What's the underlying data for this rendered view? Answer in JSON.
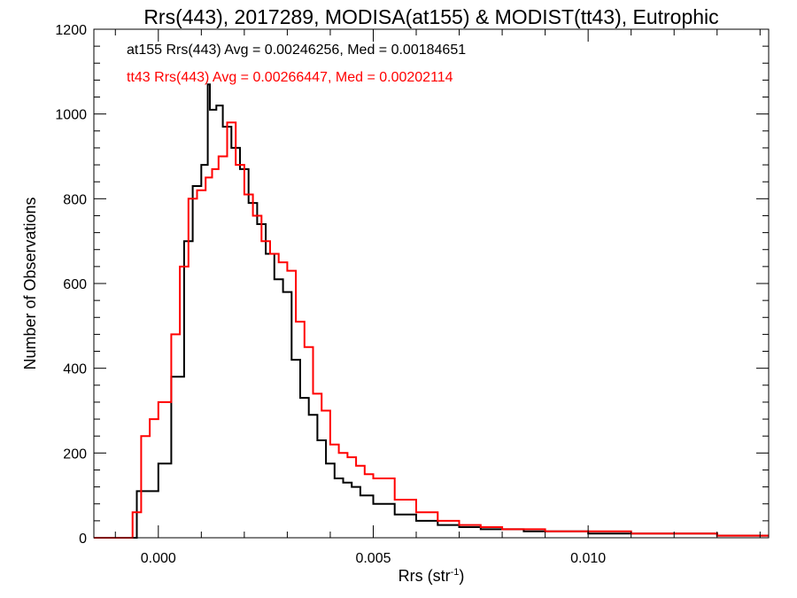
{
  "chart_data": {
    "type": "histogram",
    "title": "Rrs(443), 2017289, MODISA(at155) & MODIST(tt43), Eutrophic",
    "xlabel": "Rrs (str",
    "xlabel_sup": "-1",
    "xlabel_close": ")",
    "ylabel": "Number of Observations",
    "xlim": [
      -0.0015,
      0.0142
    ],
    "ylim": [
      0,
      1200
    ],
    "grid": false,
    "x_ticks": [
      {
        "value": 0.0,
        "label": "0.000"
      },
      {
        "value": 0.005,
        "label": "0.005"
      },
      {
        "value": 0.01,
        "label": "0.010"
      }
    ],
    "y_ticks": [
      {
        "value": 0,
        "label": "0"
      },
      {
        "value": 200,
        "label": "200"
      },
      {
        "value": 400,
        "label": "400"
      },
      {
        "value": 600,
        "label": "600"
      },
      {
        "value": 800,
        "label": "800"
      },
      {
        "value": 1000,
        "label": "1000"
      },
      {
        "value": 1200,
        "label": "1200"
      }
    ],
    "legend_position": "top-left",
    "series": [
      {
        "name": "at155",
        "color": "#000000",
        "legend_text": "at155 Rrs(443) Avg = 0.00246256, Med = 0.00184651",
        "x": [
          -0.0015,
          -0.0009,
          -0.0005,
          0.0,
          0.0003,
          0.0006,
          0.0008,
          0.001,
          0.00115,
          0.0012,
          0.00135,
          0.0015,
          0.0017,
          0.0019,
          0.0021,
          0.0023,
          0.0025,
          0.0027,
          0.0029,
          0.0031,
          0.0033,
          0.0035,
          0.0037,
          0.0039,
          0.0041,
          0.0043,
          0.0045,
          0.0047,
          0.005,
          0.0055,
          0.006,
          0.0065,
          0.007,
          0.0075,
          0.008,
          0.0085,
          0.009,
          0.01,
          0.011,
          0.012,
          0.013,
          0.0142
        ],
        "values": [
          0,
          0,
          110,
          175,
          380,
          700,
          830,
          880,
          1070,
          1010,
          1020,
          970,
          920,
          870,
          790,
          740,
          670,
          610,
          580,
          420,
          330,
          290,
          230,
          175,
          140,
          130,
          120,
          100,
          80,
          55,
          40,
          30,
          25,
          20,
          20,
          15,
          15,
          10,
          10,
          10,
          5,
          5
        ]
      },
      {
        "name": "tt43",
        "color": "#ff0000",
        "legend_text": "tt43 Rrs(443) Avg = 0.00266447, Med = 0.00202114",
        "x": [
          -0.0015,
          -0.0009,
          -0.0006,
          -0.0004,
          -0.0002,
          0.0,
          0.0003,
          0.0005,
          0.0007,
          0.0009,
          0.0011,
          0.00125,
          0.0014,
          0.0016,
          0.0018,
          0.002,
          0.0022,
          0.0024,
          0.0026,
          0.0028,
          0.003,
          0.0032,
          0.0034,
          0.0036,
          0.0038,
          0.004,
          0.0042,
          0.0044,
          0.0046,
          0.0048,
          0.005,
          0.0055,
          0.006,
          0.0065,
          0.007,
          0.0075,
          0.008,
          0.0085,
          0.009,
          0.01,
          0.011,
          0.012,
          0.013,
          0.0142
        ],
        "values": [
          0,
          0,
          60,
          240,
          280,
          320,
          480,
          640,
          800,
          820,
          850,
          870,
          900,
          980,
          880,
          810,
          760,
          700,
          670,
          650,
          630,
          510,
          450,
          340,
          300,
          220,
          200,
          190,
          170,
          150,
          140,
          90,
          60,
          40,
          30,
          25,
          20,
          20,
          15,
          15,
          10,
          10,
          5,
          5
        ]
      }
    ]
  }
}
